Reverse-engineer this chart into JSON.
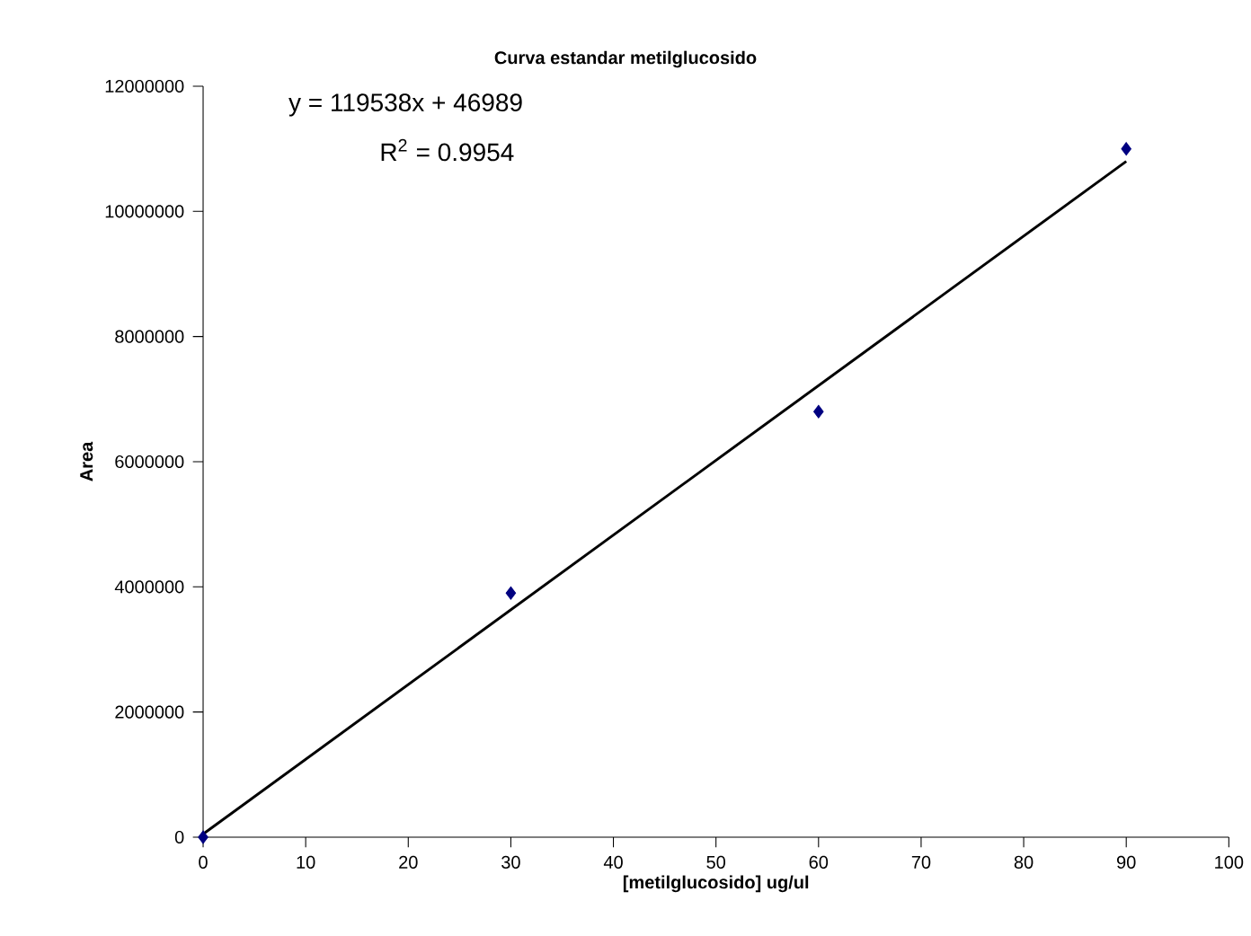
{
  "chart_data": {
    "type": "scatter",
    "title": "Curva estandar metilglucosido",
    "xlabel": "[metilglucosido] ug/ul",
    "ylabel": "Area",
    "xlim": [
      0,
      100
    ],
    "ylim": [
      0,
      12000000
    ],
    "xticks": [
      0,
      10,
      20,
      30,
      40,
      50,
      60,
      70,
      80,
      90,
      100
    ],
    "yticks": [
      0,
      2000000,
      4000000,
      6000000,
      8000000,
      10000000,
      12000000
    ],
    "marker": "diamond",
    "grid": false,
    "annotations": [
      "y = 119538x + 46989",
      "R$^{2}$ = 0.9954"
    ],
    "series": [
      {
        "color": "#000080",
        "x": [
          0,
          30,
          60,
          90
        ],
        "values": [
          0,
          3900000,
          6800000,
          11000000
        ]
      },
      {
        "type": "line",
        "color": "#000000",
        "marker": "none",
        "line_style": "solid",
        "x": [
          0,
          90
        ],
        "values": [
          50000,
          10800000
        ]
      }
    ]
  }
}
